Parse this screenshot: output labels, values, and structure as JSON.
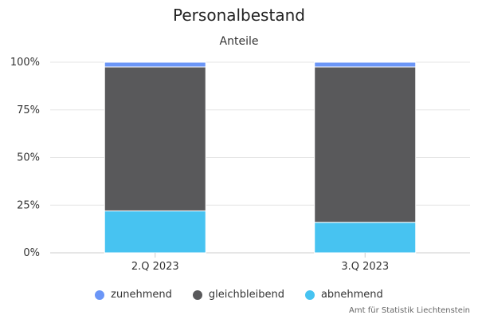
{
  "chart_data": {
    "type": "bar",
    "stacked": true,
    "percent": true,
    "title": "Personalbestand",
    "subtitle": "Anteile",
    "categories": [
      "2.Q 2023",
      "3.Q 2023"
    ],
    "series": [
      {
        "name": "zunehmend",
        "color": "#6b96f7",
        "values": [
          2.5,
          2.5
        ]
      },
      {
        "name": "gleichbleibend",
        "color": "#59595b",
        "values": [
          75.5,
          81.5
        ]
      },
      {
        "name": "abnehmend",
        "color": "#47c3f1",
        "values": [
          22,
          16
        ]
      }
    ],
    "y_ticks": [
      "0%",
      "25%",
      "50%",
      "75%",
      "100%"
    ],
    "ylim": [
      0,
      100
    ],
    "grid": true,
    "legend": "bottom",
    "credit": "Amt für Statistik Liechtenstein"
  }
}
